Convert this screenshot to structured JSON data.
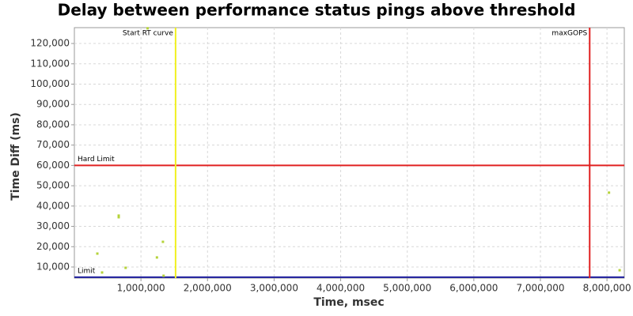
{
  "chart_data": {
    "type": "scatter",
    "title": "Delay between performance status pings above threshold",
    "x_label": "Time, msec",
    "y_label": "Time Diff (ms)",
    "x": [
      345000,
      416000,
      666000,
      666000,
      770000,
      1100000,
      1240000,
      1330000,
      1340000,
      8030000,
      8190000
    ],
    "values": [
      16600,
      7300,
      35300,
      34500,
      9600,
      127500,
      14700,
      22400,
      5700,
      46600,
      8400
    ],
    "color": "#b5d33a",
    "xlim": [
      0,
      8260000
    ],
    "ylim": [
      4550,
      127800
    ],
    "xticks": [
      {
        "value": 1000000,
        "label": "1,000,000"
      },
      {
        "value": 2000000,
        "label": "2,000,000"
      },
      {
        "value": 3000000,
        "label": "3,000,000"
      },
      {
        "value": 4000000,
        "label": "4,000,000"
      },
      {
        "value": 5000000,
        "label": "5,000,000"
      },
      {
        "value": 6000000,
        "label": "6,000,000"
      },
      {
        "value": 7000000,
        "label": "7,000,000"
      },
      {
        "value": 8000000,
        "label": "8,000,000"
      }
    ],
    "yticks": [
      {
        "value": 10000,
        "label": "10,000"
      },
      {
        "value": 20000,
        "label": "20,000"
      },
      {
        "value": 30000,
        "label": "30,000"
      },
      {
        "value": 40000,
        "label": "40,000"
      },
      {
        "value": 50000,
        "label": "50,000"
      },
      {
        "value": 60000,
        "label": "60,000"
      },
      {
        "value": 70000,
        "label": "70,000"
      },
      {
        "value": 80000,
        "label": "80,000"
      },
      {
        "value": 90000,
        "label": "90,000"
      },
      {
        "value": 100000,
        "label": "100,000"
      },
      {
        "value": 110000,
        "label": "110,000"
      },
      {
        "value": 120000,
        "label": "120,000"
      }
    ],
    "grid": true,
    "hlines": [
      {
        "value": 60000,
        "label": "Hard Limit",
        "color": "#e02020"
      },
      {
        "value": 5000,
        "label": "Limit",
        "color": "#2020a0"
      }
    ],
    "vlines": [
      {
        "value": 1520000,
        "label": "Start RT curve",
        "color": "#f0f020"
      },
      {
        "value": 7740000,
        "label": "maxGOPS",
        "color": "#e02020"
      }
    ]
  }
}
